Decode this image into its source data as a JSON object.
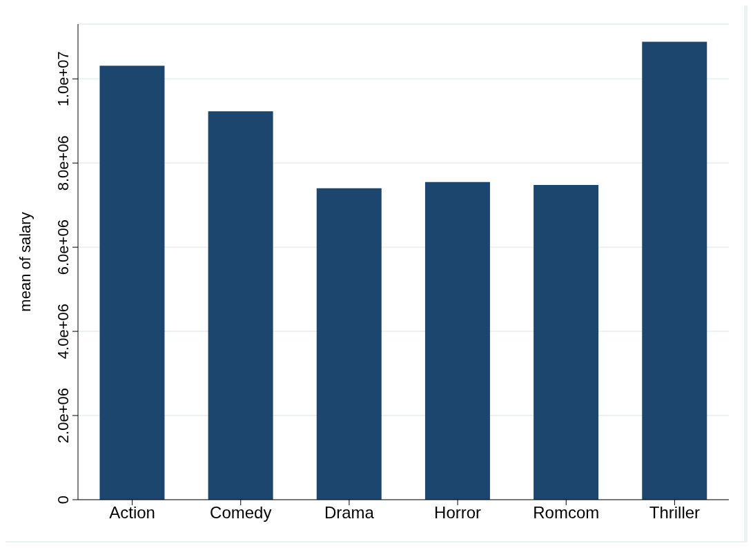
{
  "chart_data": {
    "type": "bar",
    "ylabel": "mean of salary",
    "categories": [
      "Action",
      "Comedy",
      "Drama",
      "Horror",
      "Romcom",
      "Thriller"
    ],
    "values": [
      10310000,
      9230000,
      7400000,
      7550000,
      7480000,
      10880000
    ],
    "color": "#1c466e",
    "ylim": [
      0,
      11300000
    ],
    "yticks": [
      {
        "value": 0,
        "label": "0"
      },
      {
        "value": 2000000,
        "label": "2.0e+06"
      },
      {
        "value": 4000000,
        "label": "4.0e+06"
      },
      {
        "value": 6000000,
        "label": "6.0e+06"
      },
      {
        "value": 8000000,
        "label": "8.0e+06"
      },
      {
        "value": 10000000,
        "label": "1.0e+07"
      }
    ],
    "grid": "y",
    "legend": false
  }
}
